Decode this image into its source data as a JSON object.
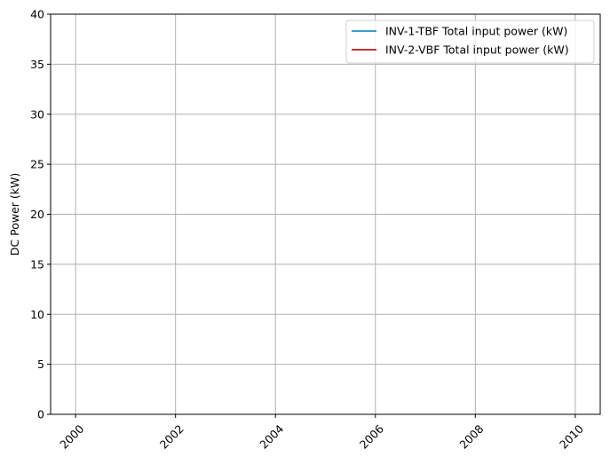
{
  "chart_data": {
    "type": "line",
    "title": "",
    "xlabel": "",
    "ylabel": "DC Power (kW)",
    "xlim": [
      1999.5,
      2010.5
    ],
    "ylim": [
      0,
      40
    ],
    "x_ticks": [
      "2000",
      "2002",
      "2004",
      "2006",
      "2008",
      "2010"
    ],
    "y_ticks": [
      "0",
      "5",
      "10",
      "15",
      "20",
      "25",
      "30",
      "35",
      "40"
    ],
    "grid": true,
    "legend_position": "top-right",
    "series": [
      {
        "name": "INV-1-TBF Total input power (kW)",
        "color": "#1f8fc4",
        "x": [],
        "y": []
      },
      {
        "name": "INV-2-VBF Total input power (kW)",
        "color": "#b5181c",
        "x": [],
        "y": []
      }
    ]
  }
}
